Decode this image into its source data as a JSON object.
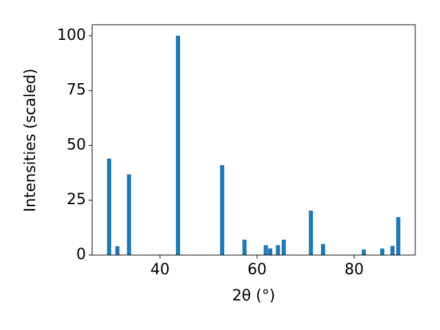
{
  "chart_data": {
    "type": "bar",
    "xlabel": "2θ (°)",
    "ylabel": "Intensities (scaled)",
    "x": [
      29.5,
      31.2,
      33.6,
      43.7,
      52.8,
      57.4,
      61.8,
      62.7,
      64.3,
      65.5,
      71.1,
      73.6,
      82.0,
      85.8,
      87.9,
      89.1
    ],
    "values": [
      44,
      4,
      36.8,
      100,
      41,
      7,
      4.5,
      3,
      4.5,
      7,
      20.3,
      5,
      2.5,
      3,
      4.2,
      17.3
    ],
    "color": "#1f77b4",
    "xlim": [
      26,
      92.6
    ],
    "xticks": [
      40,
      60,
      80
    ],
    "ylim": [
      0,
      105
    ],
    "yticks": [
      0,
      25,
      50,
      75,
      100
    ]
  }
}
